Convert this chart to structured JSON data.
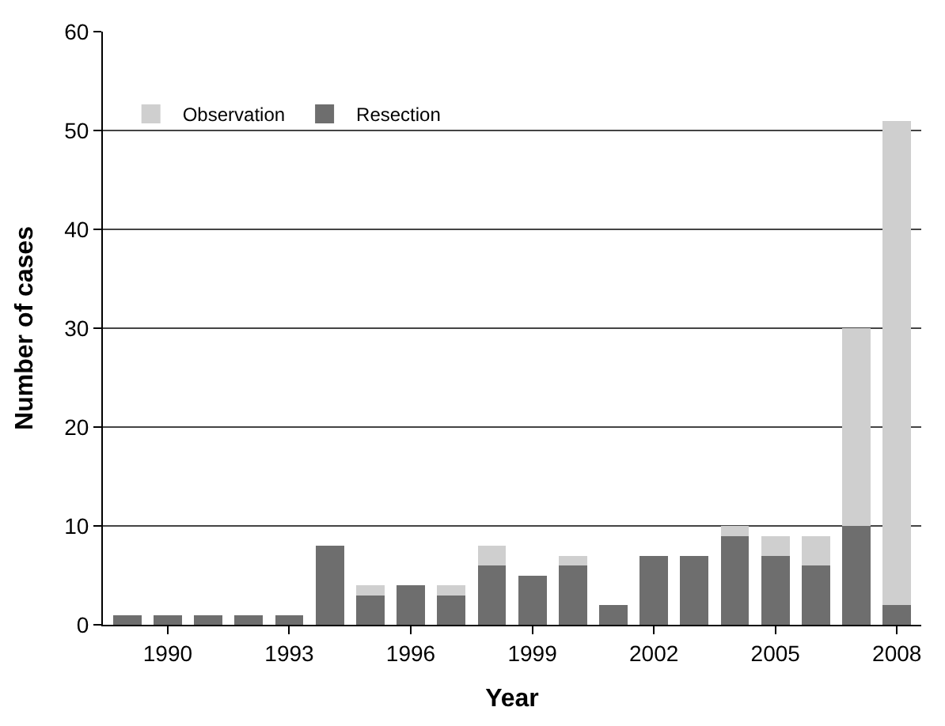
{
  "chart_data": {
    "type": "bar",
    "stacked": true,
    "xlabel": "Year",
    "ylabel": "Number of cases",
    "categories": [
      null,
      "1990",
      null,
      null,
      "1993",
      null,
      null,
      "1996",
      null,
      null,
      "1999",
      null,
      null,
      "2002",
      null,
      null,
      "2005",
      null,
      null,
      "2008"
    ],
    "series": [
      {
        "name": "Resection",
        "color": "#6e6e6e",
        "values": [
          1,
          1,
          1,
          1,
          1,
          8,
          3,
          4,
          3,
          6,
          5,
          6,
          2,
          7,
          7,
          9,
          7,
          6,
          10,
          2
        ]
      },
      {
        "name": "Observation",
        "color": "#cfcfcf",
        "values": [
          0,
          0,
          0,
          0,
          0,
          0,
          1,
          0,
          1,
          2,
          0,
          1,
          0,
          0,
          0,
          1,
          2,
          3,
          20,
          49
        ]
      }
    ],
    "ylim": [
      0,
      60
    ],
    "yticks": [
      0,
      10,
      20,
      30,
      40,
      50,
      60
    ],
    "grid": "y",
    "legend": "top left"
  }
}
